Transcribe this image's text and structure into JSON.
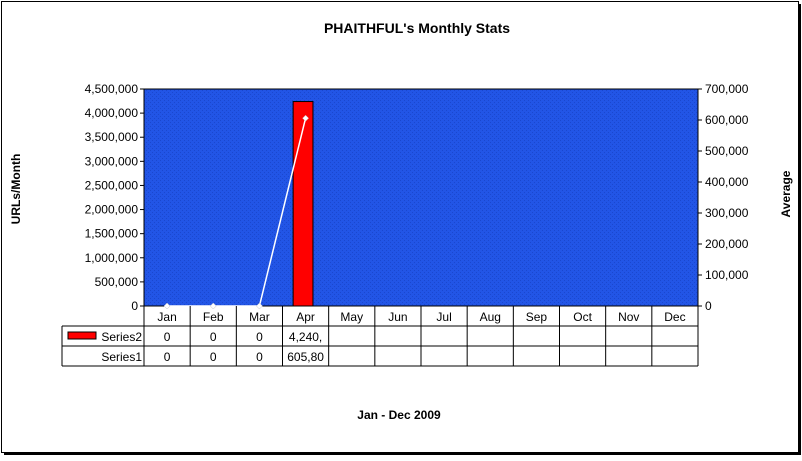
{
  "chart_data": {
    "type": "bar",
    "title": "PHAITHFUL's Monthly Stats",
    "xlabel": "Jan - Dec 2009",
    "ylabel": "URLs/Month",
    "y2label": "Average",
    "categories": [
      "Jan",
      "Feb",
      "Mar",
      "Apr",
      "May",
      "Jun",
      "Jul",
      "Aug",
      "Sep",
      "Oct",
      "Nov",
      "Dec"
    ],
    "ylim": [
      0,
      4500000
    ],
    "y2lim": [
      0,
      700000
    ],
    "yticks": [
      "0",
      "500,000",
      "1,000,000",
      "1,500,000",
      "2,000,000",
      "2,500,000",
      "3,000,000",
      "3,500,000",
      "4,000,000",
      "4,500,000"
    ],
    "y2ticks": [
      "0",
      "100,000",
      "200,000",
      "300,000",
      "400,000",
      "500,000",
      "600,000",
      "700,000"
    ],
    "grid": false,
    "legend": "data-table",
    "series": [
      {
        "name": "Series2",
        "type": "bar",
        "axis": "left",
        "color": "#ff0000",
        "values": [
          0,
          0,
          0,
          4240000,
          null,
          null,
          null,
          null,
          null,
          null,
          null,
          null
        ],
        "table_labels": [
          "0",
          "0",
          "0",
          "4,240,",
          "",
          "",
          "",
          "",
          "",
          "",
          "",
          ""
        ]
      },
      {
        "name": "Series1",
        "type": "line",
        "axis": "right",
        "color": "#ffffff",
        "values": [
          0,
          0,
          0,
          605800,
          null,
          null,
          null,
          null,
          null,
          null,
          null,
          null
        ],
        "table_labels": [
          "0",
          "0",
          "0",
          "605,80",
          "",
          "",
          "",
          "",
          "",
          "",
          "",
          ""
        ]
      }
    ],
    "plot_background": "#2255e6"
  }
}
